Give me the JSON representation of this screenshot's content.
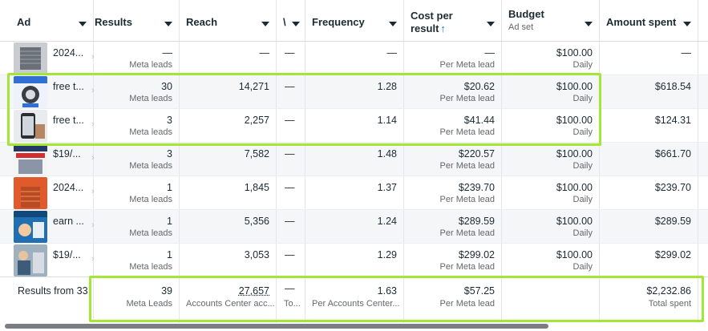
{
  "header": {
    "ad": "Ad",
    "results": "Results",
    "reach": "Reach",
    "narrow": "\\",
    "frequency": "Frequency",
    "cost_line1": "Cost per",
    "cost_line2": "result",
    "cost_sort_icon": "↑",
    "budget": "Budget",
    "budget_sub": "Ad set",
    "amount": "Amount spent"
  },
  "rows": [
    {
      "name": "2024...",
      "thumb": "ac-unit",
      "results": "—",
      "results_sub": "Meta leads",
      "reach": "—",
      "narrow": "—",
      "frequency": "—",
      "cost": "—",
      "cost_sub": "Per Meta lead",
      "budget": "$100.00",
      "budget_sub": "Daily",
      "amount": "—"
    },
    {
      "name": "free t...",
      "thumb": "replace-ad",
      "results": "30",
      "results_sub": "Meta leads",
      "reach": "14,271",
      "narrow": "—",
      "frequency": "1.28",
      "cost": "$20.62",
      "cost_sub": "Per Meta lead",
      "budget": "$100.00",
      "budget_sub": "Daily",
      "amount": "$618.54"
    },
    {
      "name": "free t...",
      "thumb": "phone-ad",
      "results": "3",
      "results_sub": "Meta leads",
      "reach": "2,257",
      "narrow": "—",
      "frequency": "1.14",
      "cost": "$41.44",
      "cost_sub": "Per Meta lead",
      "budget": "$100.00",
      "budget_sub": "Daily",
      "amount": "$124.31"
    },
    {
      "name": "$19/...",
      "thumb": "week-ad",
      "results": "3",
      "results_sub": "Meta leads",
      "reach": "7,582",
      "narrow": "—",
      "frequency": "1.48",
      "cost": "$220.57",
      "cost_sub": "Per Meta lead",
      "budget": "$100.00",
      "budget_sub": "Daily",
      "amount": "$661.70"
    },
    {
      "name": "2024...",
      "thumb": "new-ac",
      "results": "1",
      "results_sub": "Meta leads",
      "reach": "1,845",
      "narrow": "—",
      "frequency": "1.37",
      "cost": "$239.70",
      "cost_sub": "Per Meta lead",
      "budget": "$100.00",
      "budget_sub": "Daily",
      "amount": "$239.70"
    },
    {
      "name": "earn ...",
      "thumb": "earn-ad",
      "results": "1",
      "results_sub": "Meta leads",
      "reach": "5,356",
      "narrow": "—",
      "frequency": "1.24",
      "cost": "$289.59",
      "cost_sub": "Per Meta lead",
      "budget": "$100.00",
      "budget_sub": "Daily",
      "amount": "$289.59"
    },
    {
      "name": "$19/...",
      "thumb": "tech-ad",
      "results": "1",
      "results_sub": "Meta leads",
      "reach": "3,053",
      "narrow": "—",
      "frequency": "1.29",
      "cost": "$299.02",
      "cost_sub": "Per Meta lead",
      "budget": "$100.00",
      "budget_sub": "Daily",
      "amount": "$299.02"
    }
  ],
  "footer": {
    "label": "Results from 33",
    "results": "39",
    "results_sub": "Meta Leads",
    "reach": "27,657",
    "reach_sub": "Accounts Center acc...",
    "narrow": "—",
    "narrow_sub": "To...",
    "frequency": "1.63",
    "frequency_sub": "Per Accounts Center...",
    "cost": "$57.25",
    "cost_sub": "Per Meta lead",
    "amount": "$2,232.86",
    "amount_sub": "Total spent"
  },
  "colors": {
    "highlight": "#a3e635",
    "sort_arrow": "#1877f2",
    "stripe": "#f5f6f7"
  }
}
